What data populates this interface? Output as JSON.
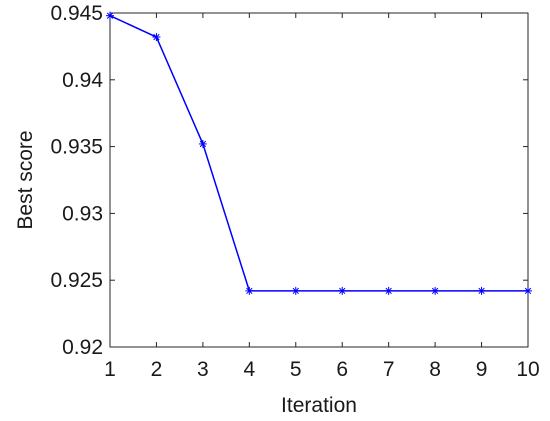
{
  "chart_data": {
    "type": "line",
    "title": "",
    "xlabel": "Iteration",
    "ylabel": "Best score",
    "xlim": [
      1,
      10
    ],
    "ylim": [
      0.92,
      0.945
    ],
    "xticks": [
      "1",
      "2",
      "3",
      "4",
      "5",
      "6",
      "7",
      "8",
      "9",
      "10"
    ],
    "yticks": [
      "0.92",
      "0.925",
      "0.93",
      "0.935",
      "0.94",
      "0.945"
    ],
    "grid": false,
    "series": [
      {
        "color": "#0000ff",
        "marker": "asterisk",
        "x": [
          1,
          2,
          3,
          4,
          5,
          6,
          7,
          8,
          9,
          10
        ],
        "y": [
          0.9448,
          0.9432,
          0.9352,
          0.9242,
          0.9242,
          0.9242,
          0.9242,
          0.9242,
          0.9242,
          0.9242
        ]
      }
    ]
  }
}
